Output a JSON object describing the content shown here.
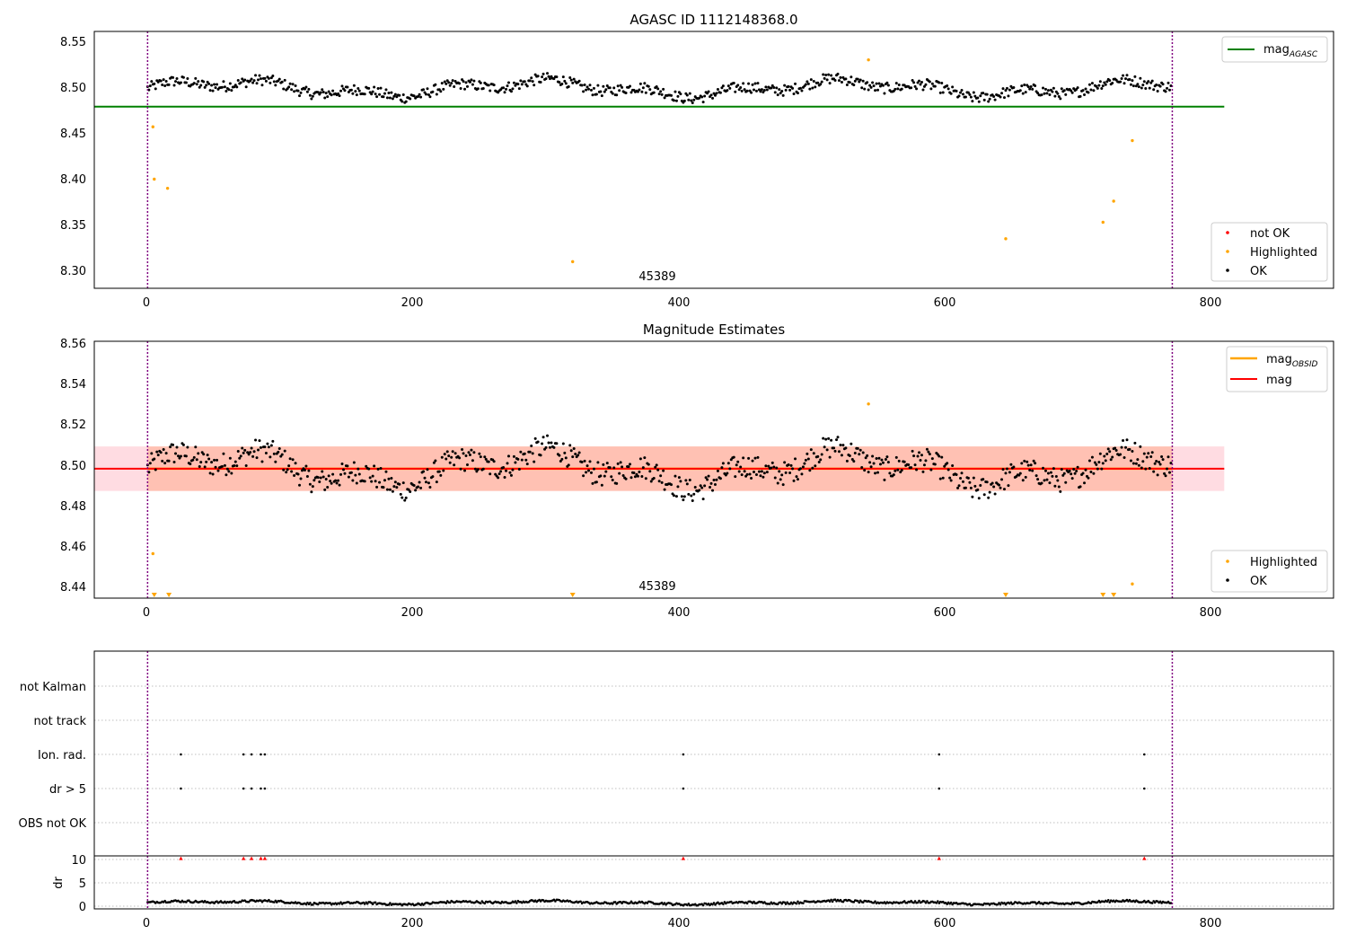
{
  "colors": {
    "ok": "#000000",
    "highlighted": "#ffa500",
    "not_ok": "#ff0000",
    "mag_agasc": "#008000",
    "mag_obsid": "#ffa500",
    "mag": "#ff0000",
    "band_obsid": "#ffa07a",
    "band_mag": "#ffc0cb",
    "obs_boundary": "#800080"
  },
  "chart_data": [
    {
      "type": "scatter",
      "title": "AGASC ID 1112148368.0",
      "xlim": [
        -40,
        890
      ],
      "ylim": [
        8.28,
        8.56
      ],
      "xticks": [
        "0",
        "200",
        "400",
        "600",
        "800"
      ],
      "yticks": [
        "8.30",
        "8.35",
        "8.40",
        "8.45",
        "8.50",
        "8.55"
      ],
      "legend_lines": {
        "position": "top-right",
        "entries": [
          "mag",
          "AGASC"
        ]
      },
      "legend_points": {
        "position": "bottom-right",
        "entries": [
          "not OK",
          "Highlighted",
          "OK"
        ]
      },
      "obsid_label": "45389",
      "obs_boundaries": [
        0,
        769
      ],
      "lines": [
        {
          "name": "mag_AGASC",
          "y": 8.478,
          "x": [
            -40,
            808
          ]
        }
      ],
      "ok_series": {
        "n": 769,
        "mean": 8.498,
        "amplitude": 0.013
      },
      "highlighted_points": [
        {
          "x": 4,
          "y": 8.456
        },
        {
          "x": 5,
          "y": 8.399
        },
        {
          "x": 15,
          "y": 8.389
        },
        {
          "x": 319,
          "y": 8.309
        },
        {
          "x": 541,
          "y": 8.529
        },
        {
          "x": 644,
          "y": 8.334
        },
        {
          "x": 717,
          "y": 8.352
        },
        {
          "x": 725,
          "y": 8.375
        },
        {
          "x": 739,
          "y": 8.441
        }
      ]
    },
    {
      "type": "scatter",
      "title": "Magnitude Estimates",
      "xlim": [
        -40,
        890
      ],
      "ylim": [
        8.434,
        8.561
      ],
      "xticks": [
        "0",
        "200",
        "400",
        "600",
        "800"
      ],
      "yticks": [
        "8.44",
        "8.46",
        "8.48",
        "8.50",
        "8.52",
        "8.54",
        "8.56"
      ],
      "legend_lines": {
        "position": "top-right",
        "entries": [
          "mag",
          "OBSID",
          "mag"
        ]
      },
      "legend_points": {
        "position": "bottom-right",
        "entries": [
          "Highlighted",
          "OK"
        ]
      },
      "obsid_label": "45389",
      "obs_boundaries": [
        0,
        769
      ],
      "lines": [
        {
          "name": "mag_OBSID",
          "y": 8.498,
          "x": [
            0,
            769
          ]
        },
        {
          "name": "mag",
          "y": 8.498,
          "x": [
            -40,
            808
          ]
        }
      ],
      "bands": [
        {
          "name": "mag_OBSID",
          "y": [
            8.487,
            8.509
          ],
          "x": [
            0,
            769
          ]
        },
        {
          "name": "mag",
          "y": [
            8.487,
            8.509
          ],
          "x": [
            -40,
            808
          ]
        }
      ],
      "ok_series": {
        "n": 769,
        "mean": 8.498,
        "amplitude": 0.013
      },
      "highlighted_points": [
        {
          "x": 4,
          "y": 8.456
        },
        {
          "x": 541,
          "y": 8.53
        },
        {
          "x": 739,
          "y": 8.441
        }
      ],
      "below_range_markers": [
        5,
        16,
        319,
        644,
        717,
        725
      ]
    },
    {
      "type": "scatter",
      "title": "",
      "xlim": [
        -40,
        890
      ],
      "categories": [
        "not Kalman",
        "not track",
        "Ion. rad.",
        "dr > 5",
        "OBS not OK"
      ],
      "flag_points": {
        "not Kalman": [],
        "not track": [],
        "Ion. rad.": [
          25,
          72,
          78,
          85,
          88,
          402,
          594,
          748
        ],
        "dr > 5": [
          25,
          72,
          78,
          85,
          88,
          402,
          594,
          748
        ],
        "OBS not OK": []
      },
      "obs_boundaries": [
        0,
        769
      ]
    },
    {
      "type": "scatter",
      "title": "",
      "ylabel": "dr",
      "xlim": [
        -40,
        890
      ],
      "ylim": [
        -0.5,
        10.5
      ],
      "xticks": [
        "0",
        "200",
        "400",
        "600",
        "800"
      ],
      "yticks": [
        "0",
        "5",
        "10"
      ],
      "clipped_points": [
        25,
        72,
        78,
        85,
        88,
        402,
        594,
        748
      ],
      "ok_series": {
        "n": 769,
        "mean": 0.8,
        "amplitude": 0.5
      },
      "obs_boundaries": [
        0,
        769
      ]
    }
  ]
}
